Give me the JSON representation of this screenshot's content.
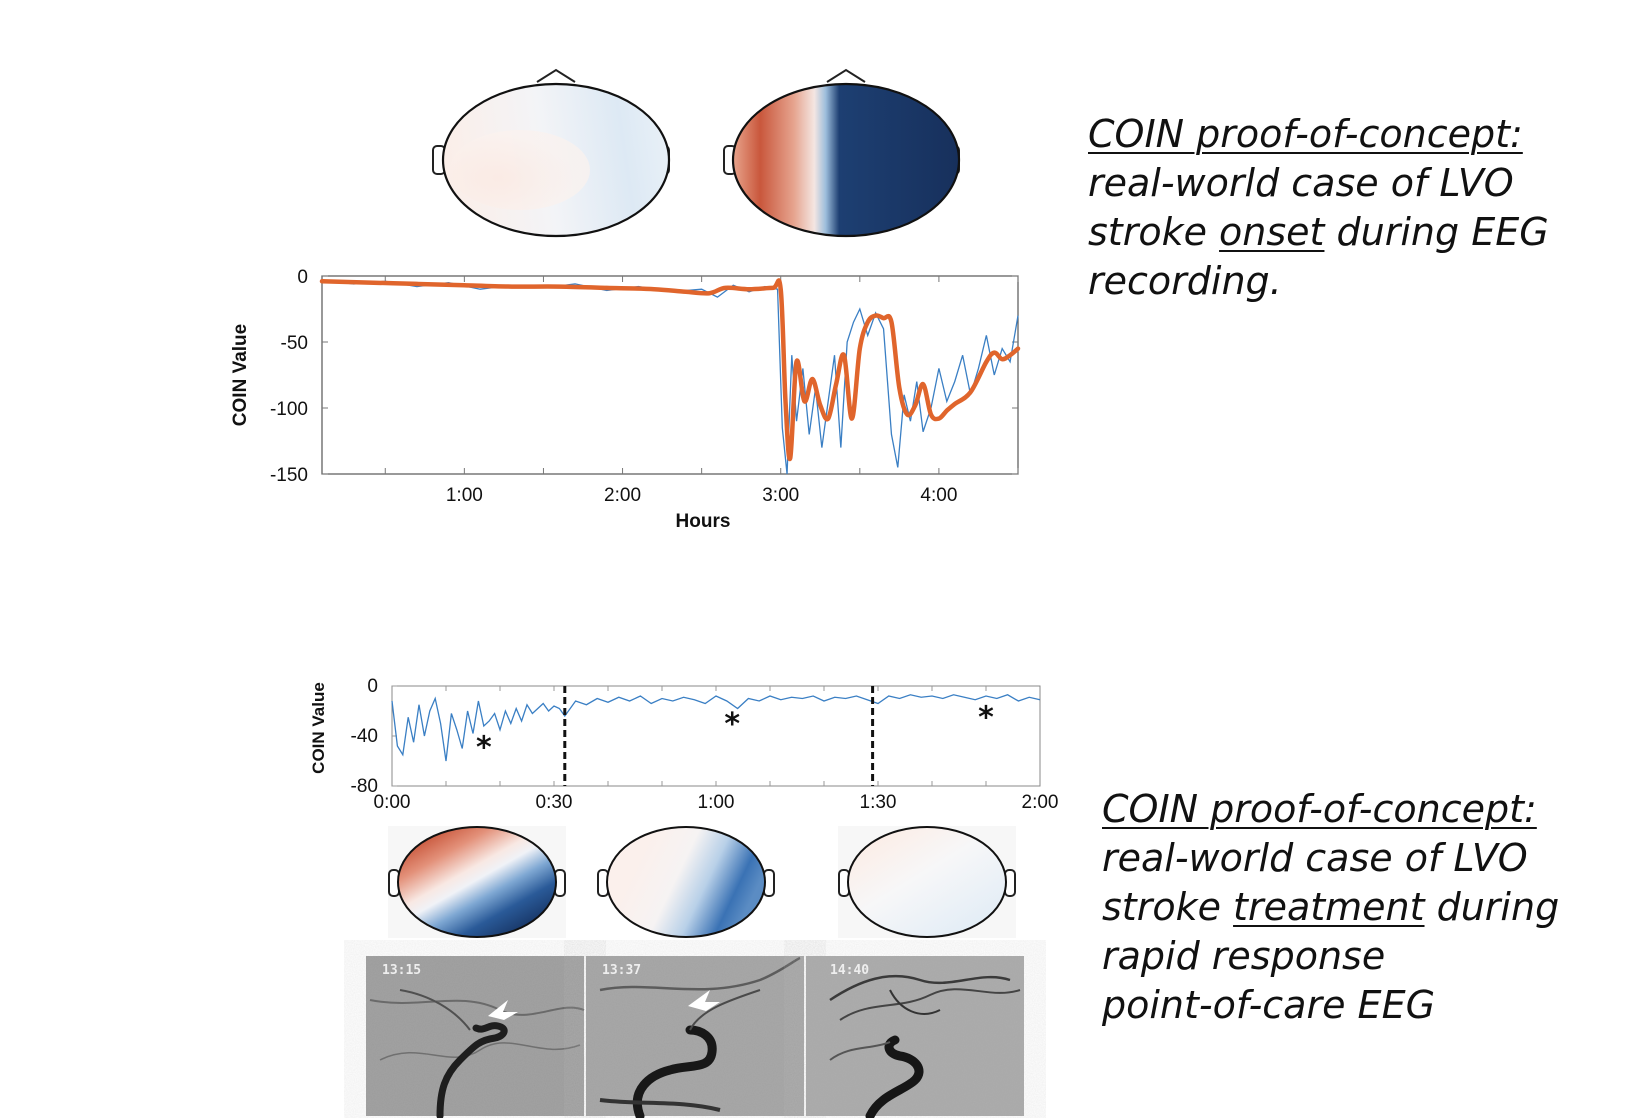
{
  "caption_top": {
    "line1": "COIN proof-of-concept:",
    "line2": "real-world case of LVO",
    "line3_pre": "stroke ",
    "line3_u": "onset",
    "line3_post": " during EEG",
    "line4": "recording."
  },
  "caption_bottom": {
    "line1": "COIN proof-of-concept:",
    "line2": "real-world case of LVO",
    "line3_pre": "stroke ",
    "line3_u": "treatment",
    "line3_post": " during",
    "line4": "rapid response",
    "line5": "point-of-care EEG"
  },
  "angio_timestamps": [
    "13:15",
    "13:37",
    "14:40"
  ],
  "colors": {
    "raw_trace": "#3a7fc4",
    "smoothed_trace": "#e0652c",
    "map_red": "#c44a34",
    "map_blue": "#16325f"
  },
  "chart_data": [
    {
      "type": "line",
      "xlabel": "Hours",
      "ylabel": "COIN Value",
      "xlim_hours": [
        0.1,
        4.5
      ],
      "ylim": [
        -150,
        0
      ],
      "x_ticks": [
        "1:00",
        "2:00",
        "3:00",
        "4:00"
      ],
      "x_tick_values": [
        1,
        2,
        3,
        4
      ],
      "y_ticks": [
        "0",
        "-50",
        "-100",
        "-150"
      ],
      "y_tick_values": [
        0,
        -50,
        -100,
        -150
      ],
      "series": [
        {
          "style": "smoothed",
          "x": [
            0.1,
            0.4,
            0.7,
            1.0,
            1.3,
            1.6,
            1.9,
            2.2,
            2.4,
            2.55,
            2.65,
            2.8,
            2.95,
            3.0,
            3.03,
            3.06,
            3.1,
            3.15,
            3.2,
            3.25,
            3.3,
            3.35,
            3.4,
            3.45,
            3.5,
            3.55,
            3.6,
            3.65,
            3.7,
            3.75,
            3.8,
            3.85,
            3.9,
            3.95,
            4.0,
            4.05,
            4.1,
            4.2,
            4.3,
            4.35,
            4.4,
            4.45,
            4.5
          ],
          "y": [
            -4,
            -5,
            -6,
            -7,
            -8,
            -8,
            -9,
            -10,
            -12,
            -13,
            -9,
            -10,
            -9,
            -10,
            -95,
            -138,
            -65,
            -95,
            -78,
            -98,
            -108,
            -82,
            -60,
            -108,
            -55,
            -35,
            -30,
            -32,
            -35,
            -85,
            -105,
            -98,
            -82,
            -105,
            -108,
            -102,
            -97,
            -88,
            -65,
            -58,
            -63,
            -60,
            -55
          ]
        },
        {
          "style": "raw",
          "x": [
            0.1,
            0.3,
            0.5,
            0.7,
            0.9,
            1.1,
            1.3,
            1.5,
            1.7,
            1.9,
            2.1,
            2.3,
            2.5,
            2.6,
            2.7,
            2.8,
            2.9,
            2.98,
            3.01,
            3.04,
            3.07,
            3.1,
            3.14,
            3.18,
            3.22,
            3.26,
            3.3,
            3.34,
            3.38,
            3.42,
            3.46,
            3.5,
            3.55,
            3.6,
            3.65,
            3.7,
            3.74,
            3.78,
            3.82,
            3.86,
            3.9,
            3.95,
            4.0,
            4.05,
            4.1,
            4.15,
            4.2,
            4.25,
            4.3,
            4.35,
            4.4,
            4.45,
            4.5
          ],
          "y": [
            -3,
            -6,
            -4,
            -8,
            -5,
            -10,
            -7,
            -9,
            -6,
            -11,
            -8,
            -12,
            -10,
            -16,
            -7,
            -12,
            -8,
            -10,
            -115,
            -150,
            -60,
            -110,
            -70,
            -120,
            -85,
            -130,
            -95,
            -60,
            -130,
            -50,
            -35,
            -25,
            -45,
            -28,
            -40,
            -120,
            -145,
            -90,
            -110,
            -80,
            -118,
            -100,
            -70,
            -95,
            -80,
            -60,
            -90,
            -70,
            -45,
            -75,
            -55,
            -65,
            -30
          ]
        }
      ]
    },
    {
      "type": "line",
      "ylabel": "COIN Value",
      "xlim_minutes": [
        0,
        120
      ],
      "ylim": [
        -80,
        0
      ],
      "x_ticks": [
        "0:00",
        "0:30",
        "1:00",
        "1:30",
        "2:00"
      ],
      "x_tick_values": [
        0,
        30,
        60,
        90,
        120
      ],
      "y_ticks": [
        "0",
        "-40",
        "-80"
      ],
      "y_tick_values": [
        0,
        -40,
        -80
      ],
      "event_lines_minutes": [
        32,
        89
      ],
      "annotations": [
        {
          "text": "*",
          "x": 17,
          "y": -46
        },
        {
          "text": "*",
          "x": 63,
          "y": -27
        },
        {
          "text": "*",
          "x": 110,
          "y": -22
        }
      ],
      "series": [
        {
          "style": "raw",
          "x": [
            0,
            1,
            2,
            3,
            4,
            5,
            6,
            7,
            8,
            9,
            10,
            11,
            12,
            13,
            14,
            15,
            16,
            17,
            18,
            19,
            20,
            21,
            22,
            23,
            24,
            25,
            26,
            27,
            28,
            29,
            30,
            31,
            32,
            34,
            36,
            38,
            40,
            42,
            44,
            46,
            48,
            50,
            52,
            54,
            56,
            58,
            60,
            62,
            64,
            66,
            68,
            70,
            72,
            74,
            76,
            78,
            80,
            82,
            84,
            86,
            88,
            90,
            92,
            94,
            96,
            98,
            100,
            102,
            104,
            106,
            108,
            110,
            112,
            114,
            116,
            118,
            120
          ],
          "y": [
            -12,
            -48,
            -55,
            -25,
            -45,
            -15,
            -40,
            -20,
            -10,
            -30,
            -60,
            -22,
            -35,
            -50,
            -20,
            -38,
            -12,
            -32,
            -28,
            -22,
            -35,
            -20,
            -30,
            -18,
            -28,
            -15,
            -22,
            -18,
            -14,
            -20,
            -16,
            -18,
            -24,
            -12,
            -15,
            -10,
            -13,
            -9,
            -12,
            -8,
            -14,
            -10,
            -12,
            -9,
            -11,
            -14,
            -8,
            -12,
            -18,
            -10,
            -12,
            -8,
            -11,
            -9,
            -10,
            -8,
            -12,
            -9,
            -10,
            -8,
            -11,
            -14,
            -8,
            -10,
            -7,
            -9,
            -8,
            -10,
            -7,
            -9,
            -11,
            -8,
            -10,
            -7,
            -12,
            -9,
            -11
          ]
        }
      ]
    }
  ]
}
